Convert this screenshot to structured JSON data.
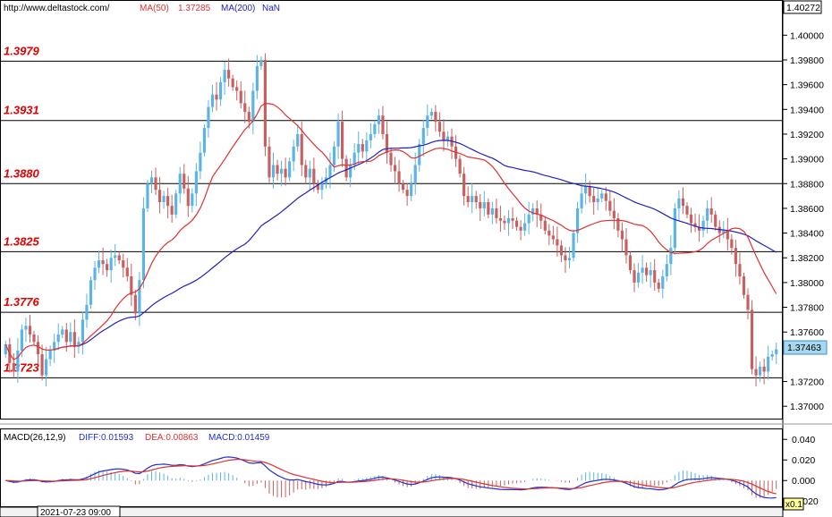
{
  "header": {
    "site": "http://www.deltastock.com/",
    "ma50_label": "MA(50)",
    "ma50_value": "1.37285",
    "ma200_label": "MA(200)",
    "ma200_value": "NaN"
  },
  "top_price": "1.40272",
  "current_price": "1.37463",
  "date_label": "2021-07-23 09:00",
  "scale_button": "x0.1",
  "macd_header": {
    "name": "MACD(26,12,9)",
    "diff": "DIFF:0.01593",
    "dea": "DEA:0.00863",
    "macd": "MACD:0.01459"
  },
  "colors": {
    "up": "#5ab4e6",
    "down": "#c96060",
    "ma50": "#e03030",
    "ma200": "#2020c0",
    "level_text": "#e00000",
    "macd_diff": "#2030d0",
    "macd_dea": "#e03030"
  },
  "chart_data": [
    {
      "type": "candlestick",
      "title": "",
      "ylim": [
        1.369,
        1.4027
      ],
      "y_ticks": [
        "1.40000",
        "1.39800",
        "1.39600",
        "1.39400",
        "1.39200",
        "1.39000",
        "1.38800",
        "1.38600",
        "1.38400",
        "1.38200",
        "1.38000",
        "1.37800",
        "1.37600",
        "1.37200",
        "1.37000"
      ],
      "levels": [
        "1.3979",
        "1.3931",
        "1.3880",
        "1.3825",
        "1.3776",
        "1.3723"
      ],
      "closes": [
        1.375,
        1.3735,
        1.3728,
        1.3745,
        1.3762,
        1.3765,
        1.3758,
        1.3752,
        1.3742,
        1.3725,
        1.3738,
        1.3745,
        1.3752,
        1.3758,
        1.3762,
        1.3752,
        1.376,
        1.3748,
        1.3752,
        1.377,
        1.3782,
        1.3802,
        1.3812,
        1.3818,
        1.3815,
        1.381,
        1.382,
        1.3822,
        1.3818,
        1.3812,
        1.3805,
        1.379,
        1.3775,
        1.3802,
        1.386,
        1.388,
        1.3885,
        1.3875,
        1.3865,
        1.387,
        1.3862,
        1.3855,
        1.3872,
        1.3888,
        1.3876,
        1.3862,
        1.3872,
        1.389,
        1.3905,
        1.3925,
        1.3942,
        1.3952,
        1.3948,
        1.3962,
        1.3972,
        1.3965,
        1.3958,
        1.3955,
        1.3945,
        1.3938,
        1.393,
        1.3955,
        1.3975,
        1.398,
        1.391,
        1.3885,
        1.3895,
        1.3888,
        1.3892,
        1.3885,
        1.3898,
        1.391,
        1.392,
        1.3895,
        1.3885,
        1.3892,
        1.388,
        1.3875,
        1.388,
        1.3885,
        1.3895,
        1.391,
        1.393,
        1.39,
        1.3885,
        1.3895,
        1.3905,
        1.3912,
        1.3906,
        1.3915,
        1.392,
        1.3928,
        1.3935,
        1.392,
        1.3905,
        1.3895,
        1.389,
        1.388,
        1.3875,
        1.387,
        1.388,
        1.3895,
        1.3912,
        1.3925,
        1.3935,
        1.3938,
        1.393,
        1.3922,
        1.3915,
        1.3918,
        1.391,
        1.39,
        1.3888,
        1.387,
        1.3865,
        1.387,
        1.3865,
        1.386,
        1.3865,
        1.3855,
        1.386,
        1.3852,
        1.385,
        1.3848,
        1.3852,
        1.385,
        1.3845,
        1.3842,
        1.3848,
        1.3855,
        1.386,
        1.3855,
        1.385,
        1.3842,
        1.3838,
        1.3835,
        1.383,
        1.3822,
        1.3818,
        1.382,
        1.384,
        1.386,
        1.3872,
        1.3878,
        1.387,
        1.3865,
        1.3868,
        1.3872,
        1.3866,
        1.3858,
        1.3852,
        1.3842,
        1.3835,
        1.3822,
        1.381,
        1.38,
        1.3808,
        1.3812,
        1.3806,
        1.381,
        1.38,
        1.3795,
        1.3805,
        1.3815,
        1.3828,
        1.386,
        1.3868,
        1.3862,
        1.3855,
        1.3848,
        1.3845,
        1.3842,
        1.385,
        1.386,
        1.3855,
        1.3845,
        1.384,
        1.3842,
        1.3835,
        1.3828,
        1.3815,
        1.3805,
        1.379,
        1.3778,
        1.373,
        1.3725,
        1.3732,
        1.3728,
        1.374,
        1.3742,
        1.3746
      ]
    },
    {
      "type": "macd",
      "ylim": [
        -0.025,
        0.048
      ],
      "y_ticks": [
        "0.040",
        "0.020",
        "0.000",
        "-0.020"
      ]
    }
  ]
}
